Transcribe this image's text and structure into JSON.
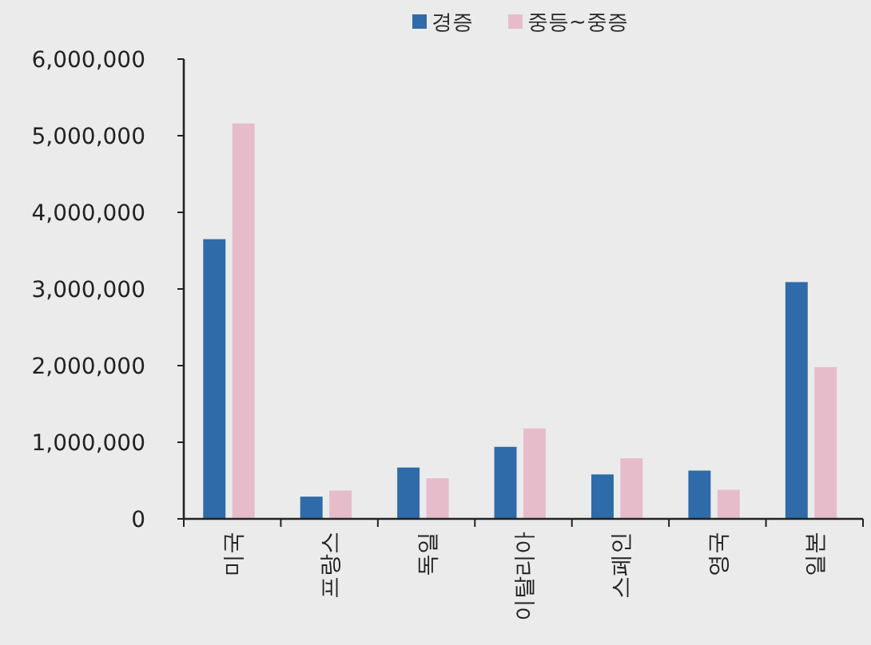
{
  "chart_data": {
    "type": "bar",
    "categories": [
      "미국",
      "프랑스",
      "독일",
      "이탈리아",
      "스페인",
      "영국",
      "일본"
    ],
    "series": [
      {
        "name": "경증",
        "color": "#2e6ba8",
        "values": [
          3650000,
          290000,
          670000,
          940000,
          580000,
          630000,
          3090000
        ]
      },
      {
        "name": "중등~중증",
        "color": "#e6bccb",
        "values": [
          5160000,
          370000,
          530000,
          1180000,
          790000,
          380000,
          1980000
        ]
      }
    ],
    "ylim": [
      0,
      6000000
    ],
    "yticks": [
      {
        "value": 0,
        "label": "0"
      },
      {
        "value": 1000000,
        "label": "1,000,000"
      },
      {
        "value": 2000000,
        "label": "2,000,000"
      },
      {
        "value": 3000000,
        "label": "3,000,000"
      },
      {
        "value": 4000000,
        "label": "4,000,000"
      },
      {
        "value": 5000000,
        "label": "5,000,000"
      },
      {
        "value": 6000000,
        "label": "6,000,000"
      }
    ],
    "legend": "top",
    "grid": false
  }
}
